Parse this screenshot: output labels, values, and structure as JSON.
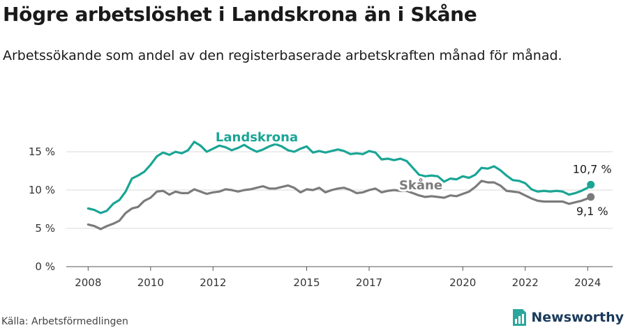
{
  "header": {
    "title": "Högre arbetslöshet i Landskrona än i Skåne",
    "subtitle": "Arbetssökande som andel av den registerbaserade arbetskraften månad för månad."
  },
  "footer": {
    "source": "Källa: Arbetsförmedlingen",
    "brand": "Newsworthy"
  },
  "chart_data": {
    "type": "line",
    "xlim": [
      2007.3,
      2024.8
    ],
    "ylim": [
      0,
      17
    ],
    "x_ticks": [
      {
        "value": 2008,
        "label": "2008"
      },
      {
        "value": 2010,
        "label": "2010"
      },
      {
        "value": 2012,
        "label": "2012"
      },
      {
        "value": 2015,
        "label": "2015"
      },
      {
        "value": 2017,
        "label": "2017"
      },
      {
        "value": 2020,
        "label": "2020"
      },
      {
        "value": 2022,
        "label": "2022"
      },
      {
        "value": 2024,
        "label": "2024"
      }
    ],
    "y_ticks": [
      {
        "value": 0,
        "label": "0 %"
      },
      {
        "value": 5,
        "label": "5 %"
      },
      {
        "value": 10,
        "label": "10 %"
      },
      {
        "value": 15,
        "label": "15 %"
      }
    ],
    "grid": true,
    "series": [
      {
        "name": "Landskrona",
        "color": "#1aa595",
        "end_label": "10,7 %",
        "points": [
          [
            2008.0,
            7.6
          ],
          [
            2008.2,
            7.4
          ],
          [
            2008.4,
            7.0
          ],
          [
            2008.6,
            7.3
          ],
          [
            2008.8,
            8.2
          ],
          [
            2009.0,
            8.7
          ],
          [
            2009.2,
            9.8
          ],
          [
            2009.4,
            11.5
          ],
          [
            2009.6,
            11.9
          ],
          [
            2009.8,
            12.4
          ],
          [
            2010.0,
            13.3
          ],
          [
            2010.2,
            14.4
          ],
          [
            2010.4,
            14.9
          ],
          [
            2010.6,
            14.6
          ],
          [
            2010.8,
            15.0
          ],
          [
            2011.0,
            14.8
          ],
          [
            2011.2,
            15.2
          ],
          [
            2011.4,
            16.3
          ],
          [
            2011.6,
            15.8
          ],
          [
            2011.8,
            15.0
          ],
          [
            2012.0,
            15.4
          ],
          [
            2012.2,
            15.8
          ],
          [
            2012.4,
            15.6
          ],
          [
            2012.6,
            15.2
          ],
          [
            2012.8,
            15.5
          ],
          [
            2013.0,
            15.9
          ],
          [
            2013.2,
            15.4
          ],
          [
            2013.4,
            15.0
          ],
          [
            2013.6,
            15.3
          ],
          [
            2013.8,
            15.7
          ],
          [
            2014.0,
            16.0
          ],
          [
            2014.2,
            15.7
          ],
          [
            2014.4,
            15.2
          ],
          [
            2014.6,
            15.0
          ],
          [
            2014.8,
            15.4
          ],
          [
            2015.0,
            15.7
          ],
          [
            2015.2,
            14.9
          ],
          [
            2015.4,
            15.1
          ],
          [
            2015.6,
            14.9
          ],
          [
            2015.8,
            15.1
          ],
          [
            2016.0,
            15.3
          ],
          [
            2016.2,
            15.1
          ],
          [
            2016.4,
            14.7
          ],
          [
            2016.6,
            14.8
          ],
          [
            2016.8,
            14.7
          ],
          [
            2017.0,
            15.1
          ],
          [
            2017.2,
            14.9
          ],
          [
            2017.4,
            14.0
          ],
          [
            2017.6,
            14.1
          ],
          [
            2017.8,
            13.9
          ],
          [
            2018.0,
            14.1
          ],
          [
            2018.2,
            13.8
          ],
          [
            2018.4,
            12.9
          ],
          [
            2018.6,
            12.0
          ],
          [
            2018.8,
            11.8
          ],
          [
            2019.0,
            11.9
          ],
          [
            2019.2,
            11.8
          ],
          [
            2019.4,
            11.1
          ],
          [
            2019.6,
            11.5
          ],
          [
            2019.8,
            11.4
          ],
          [
            2020.0,
            11.8
          ],
          [
            2020.2,
            11.6
          ],
          [
            2020.4,
            12.0
          ],
          [
            2020.6,
            12.9
          ],
          [
            2020.8,
            12.8
          ],
          [
            2021.0,
            13.1
          ],
          [
            2021.2,
            12.6
          ],
          [
            2021.4,
            11.9
          ],
          [
            2021.6,
            11.3
          ],
          [
            2021.8,
            11.2
          ],
          [
            2022.0,
            10.9
          ],
          [
            2022.2,
            10.1
          ],
          [
            2022.4,
            9.8
          ],
          [
            2022.6,
            9.9
          ],
          [
            2022.8,
            9.8
          ],
          [
            2023.0,
            9.9
          ],
          [
            2023.2,
            9.8
          ],
          [
            2023.4,
            9.4
          ],
          [
            2023.6,
            9.6
          ],
          [
            2023.8,
            9.9
          ],
          [
            2024.0,
            10.3
          ],
          [
            2024.1,
            10.7
          ]
        ]
      },
      {
        "name": "Skåne",
        "color": "#7b7b7b",
        "end_label": "9,1 %",
        "points": [
          [
            2008.0,
            5.5
          ],
          [
            2008.2,
            5.3
          ],
          [
            2008.4,
            4.9
          ],
          [
            2008.6,
            5.3
          ],
          [
            2008.8,
            5.6
          ],
          [
            2009.0,
            6.0
          ],
          [
            2009.2,
            7.0
          ],
          [
            2009.4,
            7.6
          ],
          [
            2009.6,
            7.8
          ],
          [
            2009.8,
            8.6
          ],
          [
            2010.0,
            9.0
          ],
          [
            2010.2,
            9.8
          ],
          [
            2010.4,
            9.9
          ],
          [
            2010.6,
            9.4
          ],
          [
            2010.8,
            9.8
          ],
          [
            2011.0,
            9.6
          ],
          [
            2011.2,
            9.6
          ],
          [
            2011.4,
            10.1
          ],
          [
            2011.6,
            9.8
          ],
          [
            2011.8,
            9.5
          ],
          [
            2012.0,
            9.7
          ],
          [
            2012.2,
            9.8
          ],
          [
            2012.4,
            10.1
          ],
          [
            2012.6,
            10.0
          ],
          [
            2012.8,
            9.8
          ],
          [
            2013.0,
            10.0
          ],
          [
            2013.2,
            10.1
          ],
          [
            2013.4,
            10.3
          ],
          [
            2013.6,
            10.5
          ],
          [
            2013.8,
            10.2
          ],
          [
            2014.0,
            10.2
          ],
          [
            2014.2,
            10.4
          ],
          [
            2014.4,
            10.6
          ],
          [
            2014.6,
            10.3
          ],
          [
            2014.8,
            9.7
          ],
          [
            2015.0,
            10.1
          ],
          [
            2015.2,
            10.0
          ],
          [
            2015.4,
            10.3
          ],
          [
            2015.6,
            9.7
          ],
          [
            2015.8,
            10.0
          ],
          [
            2016.0,
            10.2
          ],
          [
            2016.2,
            10.3
          ],
          [
            2016.4,
            10.0
          ],
          [
            2016.6,
            9.6
          ],
          [
            2016.8,
            9.7
          ],
          [
            2017.0,
            10.0
          ],
          [
            2017.2,
            10.2
          ],
          [
            2017.4,
            9.7
          ],
          [
            2017.6,
            9.9
          ],
          [
            2017.8,
            10.0
          ],
          [
            2018.0,
            9.9
          ],
          [
            2018.2,
            9.9
          ],
          [
            2018.4,
            9.6
          ],
          [
            2018.6,
            9.3
          ],
          [
            2018.8,
            9.1
          ],
          [
            2019.0,
            9.2
          ],
          [
            2019.2,
            9.1
          ],
          [
            2019.4,
            9.0
          ],
          [
            2019.6,
            9.3
          ],
          [
            2019.8,
            9.2
          ],
          [
            2020.0,
            9.5
          ],
          [
            2020.2,
            9.8
          ],
          [
            2020.4,
            10.4
          ],
          [
            2020.6,
            11.2
          ],
          [
            2020.8,
            11.0
          ],
          [
            2021.0,
            11.0
          ],
          [
            2021.2,
            10.6
          ],
          [
            2021.4,
            9.9
          ],
          [
            2021.6,
            9.8
          ],
          [
            2021.8,
            9.7
          ],
          [
            2022.0,
            9.3
          ],
          [
            2022.2,
            8.9
          ],
          [
            2022.4,
            8.6
          ],
          [
            2022.6,
            8.5
          ],
          [
            2022.8,
            8.5
          ],
          [
            2023.0,
            8.5
          ],
          [
            2023.2,
            8.5
          ],
          [
            2023.4,
            8.2
          ],
          [
            2023.6,
            8.4
          ],
          [
            2023.8,
            8.6
          ],
          [
            2024.0,
            8.9
          ],
          [
            2024.1,
            9.1
          ]
        ]
      }
    ]
  }
}
